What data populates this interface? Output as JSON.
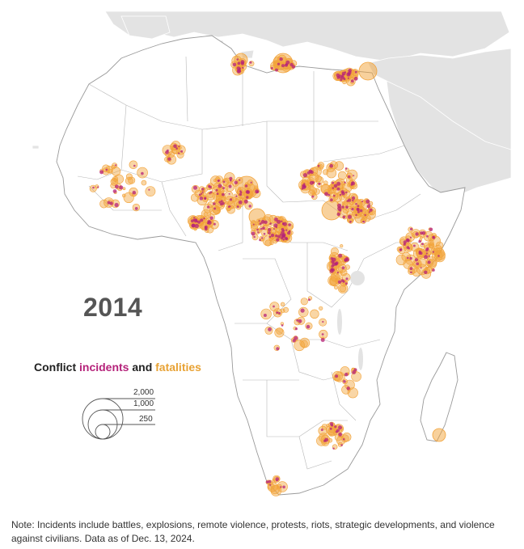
{
  "map": {
    "year_label": "2014",
    "colors": {
      "land": "#ffffff",
      "border": "#b8b8b8",
      "other_land": "#e3e3e3",
      "incident": "#b5227a",
      "fatality": "#f2a33a"
    },
    "legend": {
      "title_prefix": "Conflict",
      "incidents_word": "incidents",
      "and_word": "and",
      "fatalities_word": "fatalities",
      "scale": [
        "2,000",
        "1,000",
        "250"
      ]
    }
  },
  "note": "Note: Incidents include battles, explosions, remote violence, protests, riots, strategic developments, and violence against civilians. Data as of Dec. 13, 2024."
}
